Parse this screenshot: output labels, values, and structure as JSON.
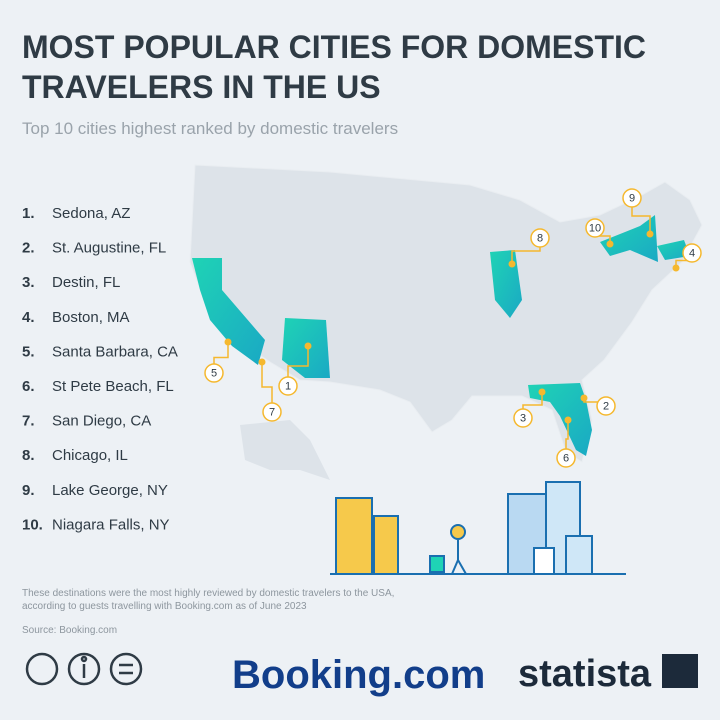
{
  "header": {
    "title_lines": [
      "MOST POPULAR CITIES FOR DOMESTIC",
      "TRAVELERS IN THE US"
    ],
    "subtitle": "Top 10 cities highest ranked by domestic travelers"
  },
  "ranking": [
    {
      "rank": "1.",
      "city": "Sedona, AZ"
    },
    {
      "rank": "2.",
      "city": "St. Augustine, FL"
    },
    {
      "rank": "3.",
      "city": "Destin, FL"
    },
    {
      "rank": "4.",
      "city": "Boston, MA"
    },
    {
      "rank": "5.",
      "city": "Santa Barbara, CA"
    },
    {
      "rank": "6.",
      "city": "St Pete Beach, FL"
    },
    {
      "rank": "7.",
      "city": "San Diego, CA"
    },
    {
      "rank": "8.",
      "city": "Chicago, IL"
    },
    {
      "rank": "9.",
      "city": "Lake George, NY"
    },
    {
      "rank": "10.",
      "city": "Niagara Falls, NY"
    }
  ],
  "map": {
    "markers": [
      "1",
      "2",
      "3",
      "4",
      "5",
      "6",
      "7",
      "8",
      "9",
      "10"
    ]
  },
  "footer": {
    "note_lines": [
      "These destinations were the most highly reviewed by domestic travelers to the USA,",
      "according to guests travelling with Booking.com as of June 2023"
    ],
    "source": "Source: Booking.com",
    "partner": "Booking.com",
    "brand": "statista"
  }
}
